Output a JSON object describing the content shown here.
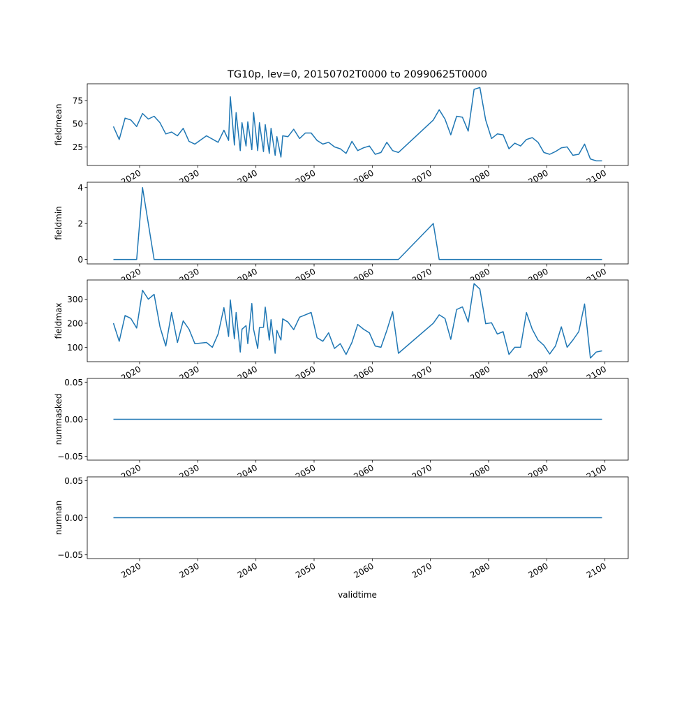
{
  "figure": {
    "title": "TG10p, lev=0, 20150702T0000 to 20990625T0000",
    "xlabel": "validtime",
    "line_color": "#1f77b4"
  },
  "chart_data": [
    {
      "type": "line",
      "ylabel": "fieldmean",
      "xlim": [
        2011,
        2104
      ],
      "ylim": [
        5,
        93
      ],
      "yticks": [
        25,
        50,
        75
      ],
      "xticks": [
        "2020",
        "2030",
        "2040",
        "2050",
        "2060",
        "2070",
        "2080",
        "2090",
        "2100"
      ],
      "grid": false,
      "x": [
        2015.5,
        2016.5,
        2017.5,
        2018.5,
        2019.5,
        2020.5,
        2021.5,
        2022.5,
        2023.5,
        2024.5,
        2025.5,
        2026.5,
        2027.5,
        2028.5,
        2029.5,
        2031.5,
        2033.5,
        2034.5,
        2035.3,
        2035.6,
        2036.3,
        2036.6,
        2037.3,
        2037.6,
        2038.3,
        2038.6,
        2039.3,
        2039.6,
        2040.3,
        2040.6,
        2041.3,
        2041.6,
        2042.3,
        2042.6,
        2043.3,
        2043.6,
        2044.3,
        2044.6,
        2045.5,
        2046.5,
        2047.5,
        2048.5,
        2049.5,
        2050.5,
        2051.5,
        2052.5,
        2053.5,
        2054.5,
        2055.5,
        2056.5,
        2057.5,
        2058.5,
        2059.5,
        2060.5,
        2061.5,
        2062.5,
        2063.5,
        2064.5,
        2070.5,
        2071.5,
        2072.5,
        2073.5,
        2074.5,
        2075.5,
        2076.5,
        2077.5,
        2078.5,
        2079.5,
        2080.5,
        2081.5,
        2082.5,
        2083.5,
        2084.5,
        2085.5,
        2086.5,
        2087.5,
        2088.5,
        2089.5,
        2090.5,
        2091.5,
        2092.5,
        2093.5,
        2094.5,
        2095.5,
        2096.5,
        2097.5,
        2098.5,
        2099.5
      ],
      "values": [
        47,
        33,
        56,
        54,
        47,
        61,
        55,
        58,
        51,
        39,
        41,
        37,
        45,
        31,
        28,
        37,
        30,
        43,
        32,
        79,
        27,
        62,
        21,
        51,
        26,
        52,
        22,
        62,
        21,
        51,
        20,
        49,
        18,
        45,
        16,
        36,
        14,
        37,
        36,
        44,
        34,
        40,
        40,
        32,
        28,
        30,
        25,
        23,
        18,
        31,
        21,
        24,
        26,
        17,
        19,
        30,
        21,
        19,
        54,
        65,
        55,
        38,
        58,
        57,
        42,
        87,
        89,
        54,
        34,
        39,
        38,
        23,
        29,
        26,
        33,
        35,
        30,
        19,
        17,
        20,
        24,
        25,
        16,
        17,
        28,
        12,
        10,
        10
      ]
    },
    {
      "type": "line",
      "ylabel": "fieldmin",
      "xlim": [
        2011,
        2104
      ],
      "ylim": [
        -0.25,
        4.3
      ],
      "yticks": [
        0,
        2,
        4
      ],
      "xticks": [
        "2020",
        "2030",
        "2040",
        "2050",
        "2060",
        "2070",
        "2080",
        "2090",
        "2100"
      ],
      "grid": false,
      "x": [
        2015.5,
        2019.5,
        2020.5,
        2022.5,
        2064.5,
        2070.5,
        2071.5,
        2099.5
      ],
      "values": [
        0,
        0,
        4,
        0,
        0,
        2,
        0,
        0
      ]
    },
    {
      "type": "line",
      "ylabel": "fieldmax",
      "xlim": [
        2011,
        2104
      ],
      "ylim": [
        40,
        380
      ],
      "yticks": [
        100,
        200,
        300
      ],
      "xticks": [
        "2020",
        "2030",
        "2040",
        "2050",
        "2060",
        "2070",
        "2080",
        "2090",
        "2100"
      ],
      "grid": false,
      "x": [
        2015.5,
        2016.5,
        2017.5,
        2018.5,
        2019.5,
        2020.5,
        2021.5,
        2022.5,
        2023.5,
        2024.5,
        2025.5,
        2026.5,
        2027.5,
        2028.5,
        2029.5,
        2031.5,
        2032.5,
        2033.5,
        2034.5,
        2035.3,
        2035.6,
        2036.3,
        2036.6,
        2037.3,
        2037.6,
        2038.3,
        2038.6,
        2039.3,
        2039.6,
        2040.3,
        2040.6,
        2041.3,
        2041.6,
        2042.3,
        2042.6,
        2043.3,
        2043.6,
        2044.3,
        2044.6,
        2045.5,
        2046.5,
        2047.5,
        2048.5,
        2049.5,
        2050.5,
        2051.5,
        2052.5,
        2053.5,
        2054.5,
        2055.5,
        2056.5,
        2057.5,
        2058.5,
        2059.5,
        2060.5,
        2061.5,
        2062.5,
        2063.5,
        2064.5,
        2070.5,
        2071.5,
        2072.5,
        2073.5,
        2074.5,
        2075.5,
        2076.5,
        2077.5,
        2078.5,
        2079.5,
        2080.5,
        2081.5,
        2082.5,
        2083.5,
        2084.5,
        2085.5,
        2086.5,
        2087.5,
        2088.5,
        2089.5,
        2090.5,
        2091.5,
        2092.5,
        2093.5,
        2094.5,
        2095.5,
        2096.5,
        2097.5,
        2098.5,
        2099.5
      ],
      "values": [
        200,
        125,
        232,
        220,
        180,
        337,
        300,
        320,
        185,
        105,
        245,
        120,
        210,
        175,
        115,
        120,
        100,
        155,
        265,
        145,
        297,
        135,
        245,
        80,
        175,
        190,
        115,
        282,
        175,
        95,
        182,
        183,
        267,
        130,
        215,
        75,
        170,
        130,
        218,
        205,
        173,
        225,
        235,
        245,
        140,
        125,
        160,
        95,
        115,
        70,
        120,
        195,
        175,
        160,
        105,
        100,
        170,
        248,
        75,
        200,
        235,
        220,
        133,
        257,
        268,
        205,
        365,
        342,
        198,
        202,
        155,
        165,
        70,
        100,
        100,
        244,
        175,
        130,
        108,
        72,
        105,
        185,
        100,
        130,
        165,
        280,
        55,
        80,
        85
      ]
    },
    {
      "type": "line",
      "ylabel": "nummasked",
      "xlim": [
        2011,
        2104
      ],
      "ylim": [
        -0.055,
        0.055
      ],
      "yticks": [
        -0.05,
        0,
        0.05
      ],
      "ytick_labels": [
        "−0.05",
        "0.00",
        "0.05"
      ],
      "xticks": [
        "2020",
        "2030",
        "2040",
        "2050",
        "2060",
        "2070",
        "2080",
        "2090",
        "2100"
      ],
      "grid": false,
      "x": [
        2015.5,
        2099.5
      ],
      "values": [
        0,
        0
      ]
    },
    {
      "type": "line",
      "ylabel": "numnan",
      "xlim": [
        2011,
        2104
      ],
      "ylim": [
        -0.055,
        0.055
      ],
      "yticks": [
        -0.05,
        0,
        0.05
      ],
      "ytick_labels": [
        "−0.05",
        "0.00",
        "0.05"
      ],
      "xticks": [
        "2020",
        "2030",
        "2040",
        "2050",
        "2060",
        "2070",
        "2080",
        "2090",
        "2100"
      ],
      "grid": false,
      "x": [
        2015.5,
        2099.5
      ],
      "values": [
        0,
        0
      ]
    }
  ]
}
